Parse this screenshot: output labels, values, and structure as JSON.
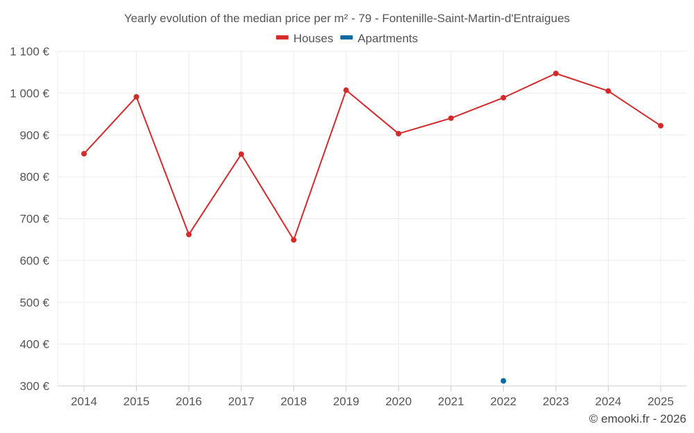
{
  "chart_data": {
    "type": "line",
    "title": "Yearly evolution of the median price per m² - 79 - Fontenille-Saint-Martin-d'Entraigues",
    "categories": [
      "2014",
      "2015",
      "2016",
      "2017",
      "2018",
      "2019",
      "2020",
      "2021",
      "2022",
      "2023",
      "2024",
      "2025"
    ],
    "y_ticks": [
      300,
      400,
      500,
      600,
      700,
      800,
      900,
      1000,
      1100
    ],
    "y_tick_labels": [
      "300 €",
      "400 €",
      "500 €",
      "600 €",
      "700 €",
      "800 €",
      "900 €",
      "1 000 €",
      "1 100 €"
    ],
    "ylim": [
      300,
      1100
    ],
    "grid": true,
    "legend_position": "top-center",
    "series": [
      {
        "name": "Houses",
        "color": "#d52a2a",
        "values": [
          855,
          991,
          662,
          854,
          649,
          1007,
          903,
          940,
          989,
          1047,
          1005,
          922
        ]
      },
      {
        "name": "Apartments",
        "color": "#0a6aa1",
        "values": [
          null,
          null,
          null,
          null,
          null,
          null,
          null,
          null,
          312,
          null,
          null,
          null
        ]
      }
    ],
    "credit": "© emooki.fr - 2026"
  }
}
